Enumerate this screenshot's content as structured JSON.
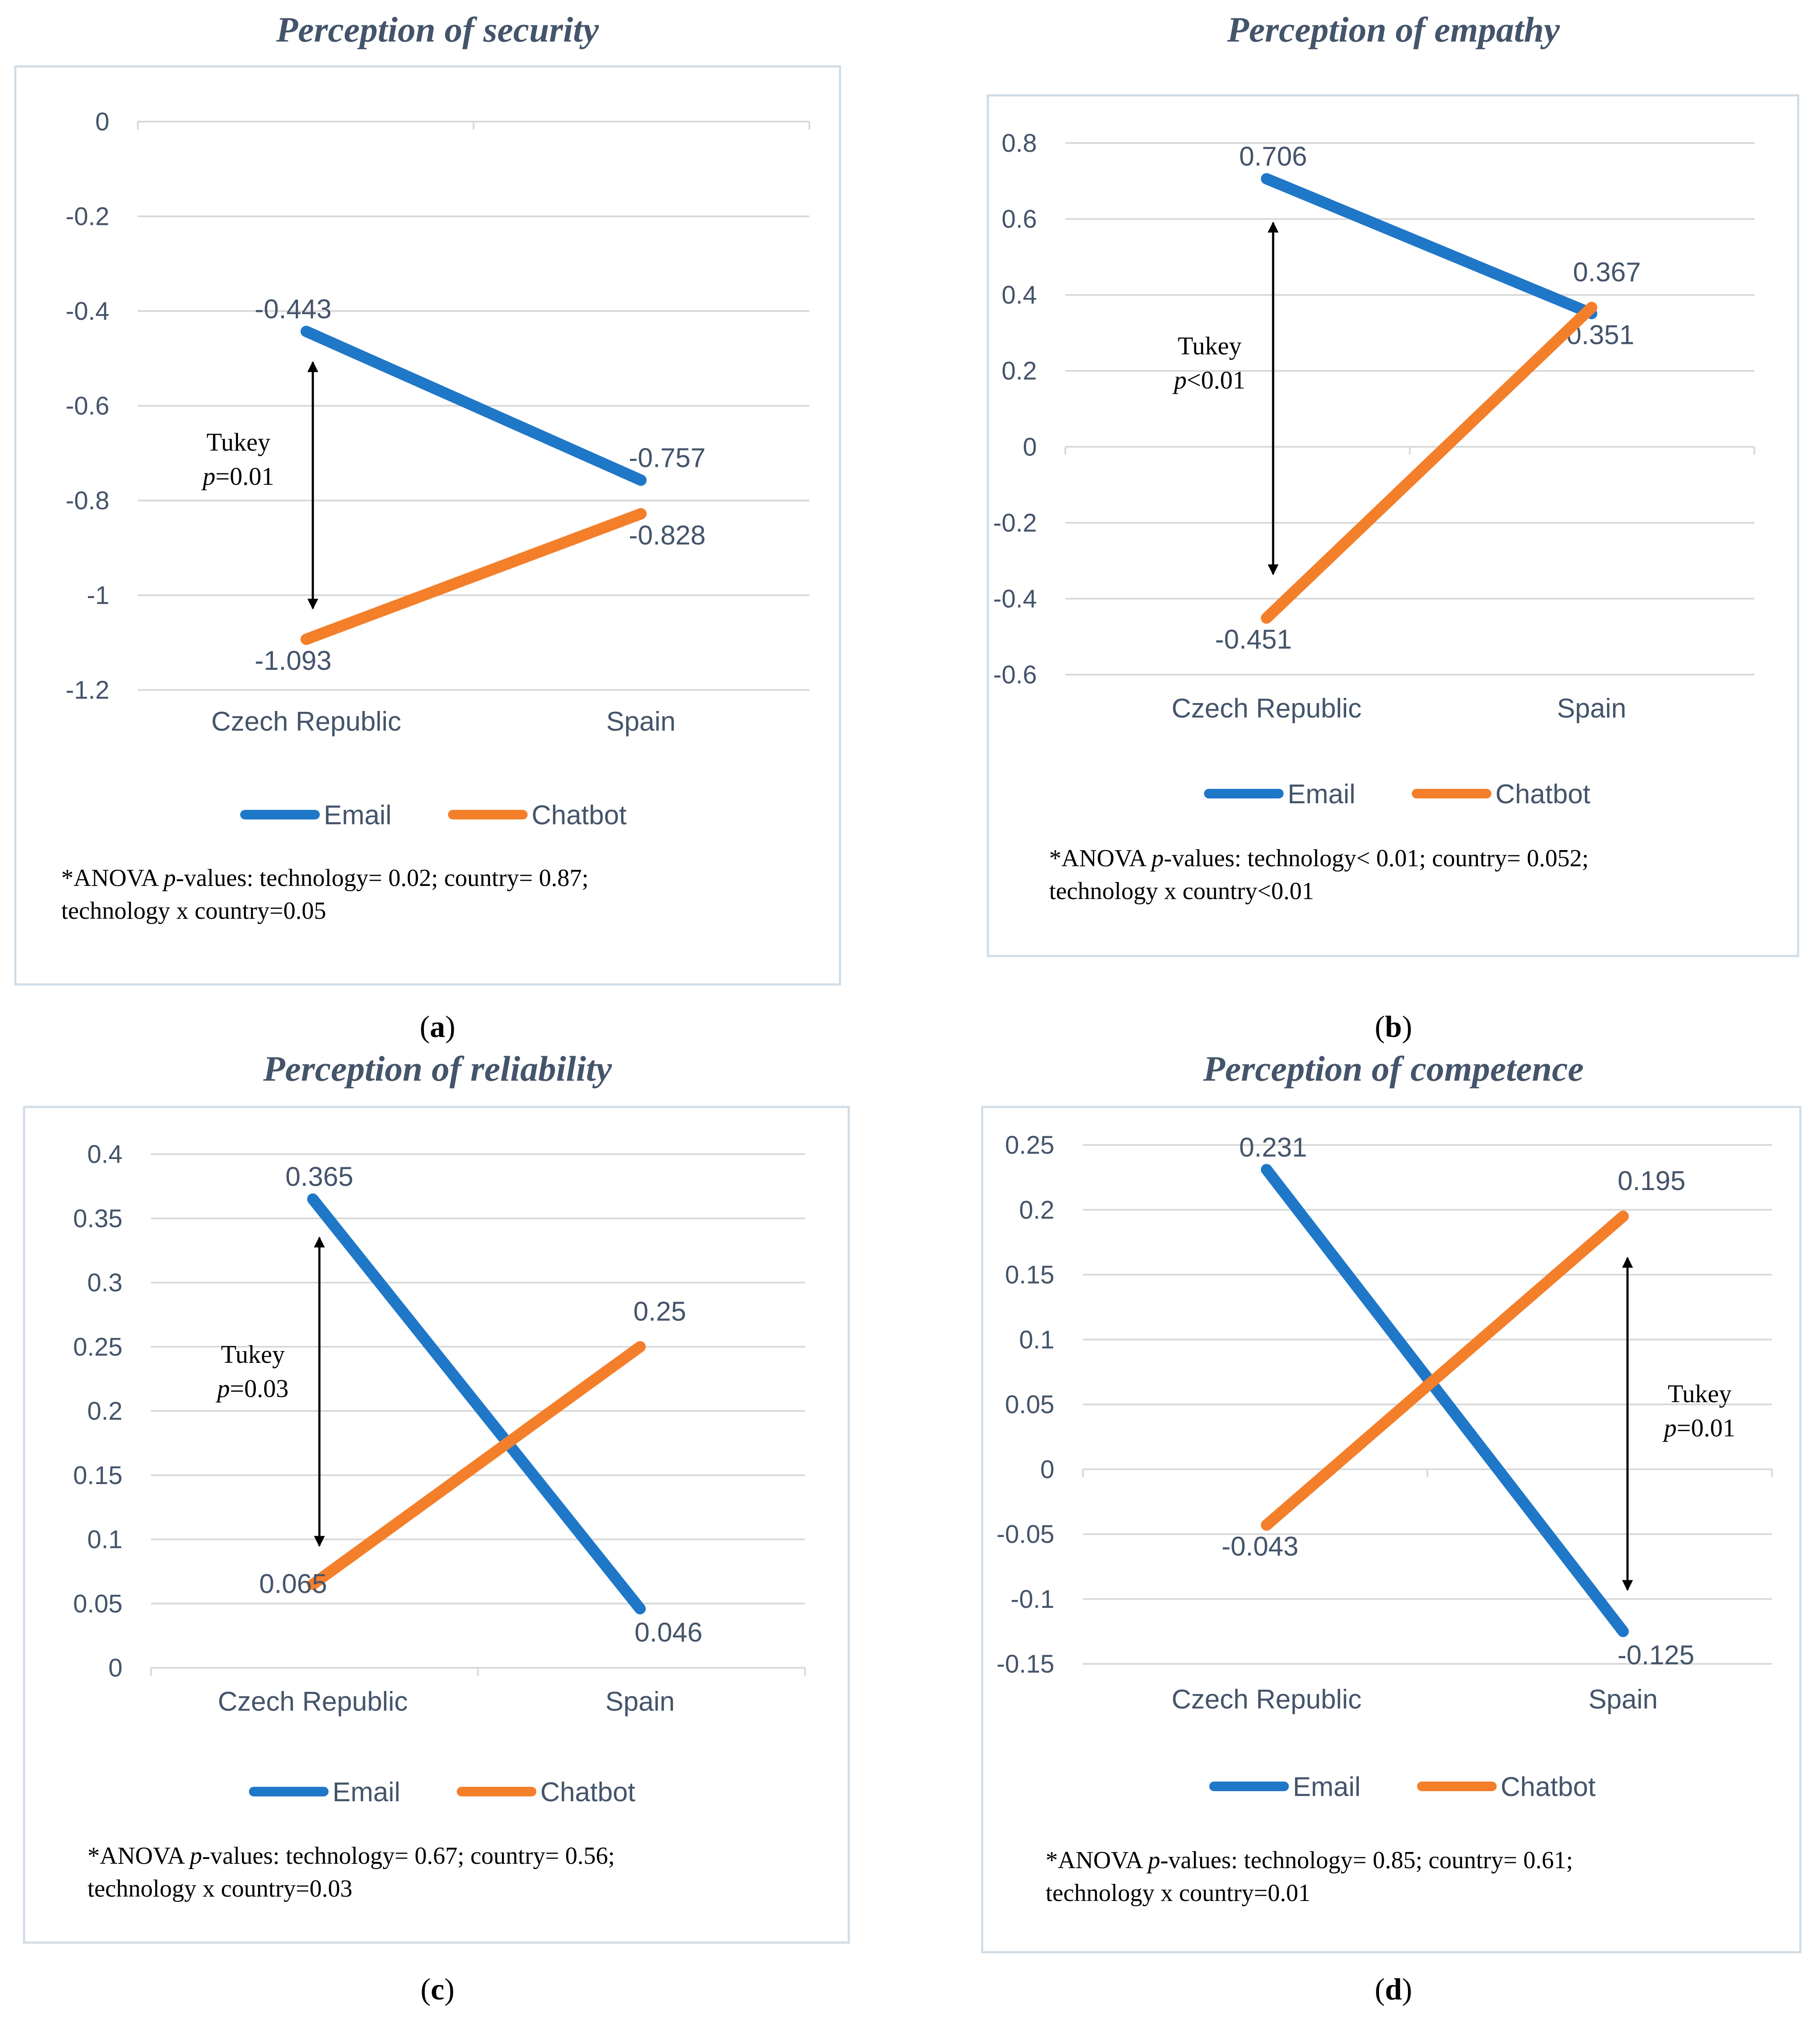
{
  "colors": {
    "email": "#1f77c8",
    "chatbot": "#f47f2a",
    "text": "#44546a",
    "grid": "#d9d9d9",
    "border": "#d0dce6"
  },
  "legend": [
    "Email",
    "Chatbot"
  ],
  "chart_data": [
    {
      "type": "line",
      "title": "Perception of security",
      "panel": "a",
      "categories": [
        "Czech Republic",
        "Spain"
      ],
      "series": [
        {
          "name": "Email",
          "values": [
            -0.443,
            -0.757
          ],
          "labels": [
            "-0.443",
            "-0.757"
          ]
        },
        {
          "name": "Chatbot",
          "values": [
            -1.093,
            -0.828
          ],
          "labels": [
            "-1.093",
            "-0.828"
          ]
        }
      ],
      "yticks": [
        "0",
        "-0.2",
        "-0.4",
        "-0.6",
        "-0.8",
        "-1",
        "-1.2"
      ],
      "ylim": [
        -1.2,
        0
      ],
      "grid": true,
      "legend_position": "bottom",
      "tukey": {
        "line1": "Tukey",
        "p_symbol": "p",
        "p_value": "=0.01",
        "category": "Czech Republic"
      },
      "note": {
        "prefix": "*ANOVA ",
        "p": "p",
        "suffix": "-values: technology= 0.02; country= 0.87;",
        "line2": "technology x country=0.05"
      }
    },
    {
      "type": "line",
      "title": "Perception of empathy",
      "panel": "b",
      "categories": [
        "Czech Republic",
        "Spain"
      ],
      "series": [
        {
          "name": "Email",
          "values": [
            0.706,
            0.351
          ],
          "labels": [
            "0.706",
            "0.351"
          ]
        },
        {
          "name": "Chatbot",
          "values": [
            -0.451,
            0.367
          ],
          "labels": [
            "-0.451",
            "0.367"
          ]
        }
      ],
      "yticks": [
        "0.8",
        "0.6",
        "0.4",
        "0.2",
        "0",
        "-0.2",
        "-0.4",
        "-0.6"
      ],
      "ylim": [
        -0.6,
        0.8
      ],
      "grid": true,
      "legend_position": "bottom",
      "tukey": {
        "line1": "Tukey",
        "p_symbol": "p",
        "p_value": "<0.01",
        "category": "Czech Republic"
      },
      "note": {
        "prefix": "*ANOVA ",
        "p": "p",
        "suffix": "-values: technology< 0.01; country= 0.052;",
        "line2": "technology x country<0.01"
      }
    },
    {
      "type": "line",
      "title": "Perception of reliability",
      "panel": "c",
      "categories": [
        "Czech Republic",
        "Spain"
      ],
      "series": [
        {
          "name": "Email",
          "values": [
            0.365,
            0.046
          ],
          "labels": [
            "0.365",
            "0.046"
          ]
        },
        {
          "name": "Chatbot",
          "values": [
            0.065,
            0.25
          ],
          "labels": [
            "0.065",
            "0.25"
          ]
        }
      ],
      "yticks": [
        "0.4",
        "0.35",
        "0.3",
        "0.25",
        "0.2",
        "0.15",
        "0.1",
        "0.05",
        "0"
      ],
      "ylim": [
        0,
        0.4
      ],
      "grid": true,
      "legend_position": "bottom",
      "tukey": {
        "line1": "Tukey",
        "p_symbol": "p",
        "p_value": "=0.03",
        "category": "Czech Republic"
      },
      "note": {
        "prefix": "*ANOVA ",
        "p": "p",
        "suffix": "-values: technology= 0.67; country= 0.56;",
        "line2": "technology x country=0.03"
      }
    },
    {
      "type": "line",
      "title": "Perception of competence",
      "panel": "d",
      "categories": [
        "Czech Republic",
        "Spain"
      ],
      "series": [
        {
          "name": "Email",
          "values": [
            0.231,
            -0.125
          ],
          "labels": [
            "0.231",
            "-0.125"
          ]
        },
        {
          "name": "Chatbot",
          "values": [
            -0.043,
            0.195
          ],
          "labels": [
            "-0.043",
            "0.195"
          ]
        }
      ],
      "yticks": [
        "0.25",
        "0.2",
        "0.15",
        "0.1",
        "0.05",
        "0",
        "-0.05",
        "-0.1",
        "-0.15"
      ],
      "ylim": [
        -0.15,
        0.25
      ],
      "grid": true,
      "legend_position": "bottom",
      "tukey": {
        "line1": "Tukey",
        "p_symbol": "p",
        "p_value": "=0.01",
        "category": "Spain"
      },
      "note": {
        "prefix": "*ANOVA ",
        "p": "p",
        "suffix": "-values: technology= 0.85; country= 0.61;",
        "line2": "technology x country=0.01"
      }
    }
  ]
}
